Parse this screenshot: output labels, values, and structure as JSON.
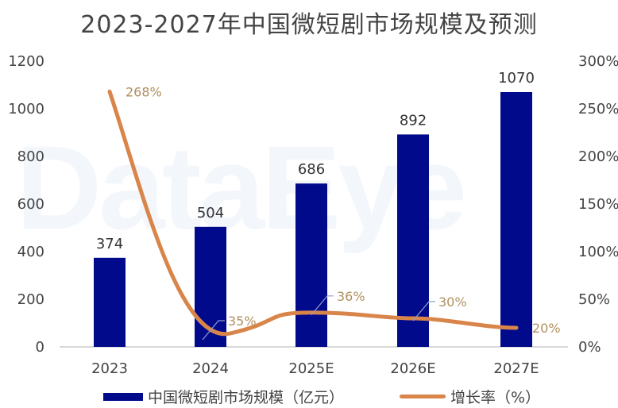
{
  "title": "2023-2027年中国微短剧市场规模及预测",
  "watermark": "DataEye",
  "colors": {
    "bar": "#020a8c",
    "line": "#d9854a",
    "pct_label": "#b09060",
    "leader": "#8ea0c8",
    "axis": "#cccccc"
  },
  "legend": {
    "bar_label": "中国微短剧市场规模（亿元）",
    "line_label": "增长率（%）"
  },
  "chart_data": {
    "type": "bar+line",
    "title": "2023-2027年中国微短剧市场规模及预测",
    "categories": [
      "2023",
      "2024",
      "2025E",
      "2026E",
      "2027E"
    ],
    "series": [
      {
        "name": "中国微短剧市场规模（亿元）",
        "type": "bar",
        "axis": "left",
        "values": [
          374,
          504,
          686,
          892,
          1070
        ]
      },
      {
        "name": "增长率（%）",
        "type": "line",
        "axis": "right",
        "values": [
          268,
          35,
          36,
          30,
          20
        ]
      }
    ],
    "left_axis": {
      "ticks": [
        "0",
        "200",
        "400",
        "600",
        "800",
        "1000",
        "1200"
      ],
      "ylim": [
        0,
        1200
      ]
    },
    "right_axis": {
      "ticks": [
        "0%",
        "50%",
        "100%",
        "150%",
        "200%",
        "250%",
        "300%"
      ],
      "ylim": [
        0,
        300
      ]
    },
    "bar_labels": [
      "374",
      "504",
      "686",
      "892",
      "1070"
    ],
    "line_labels": [
      "268%",
      "35%",
      "36%",
      "30%",
      "20%"
    ],
    "legend_position": "bottom",
    "grid": false
  }
}
